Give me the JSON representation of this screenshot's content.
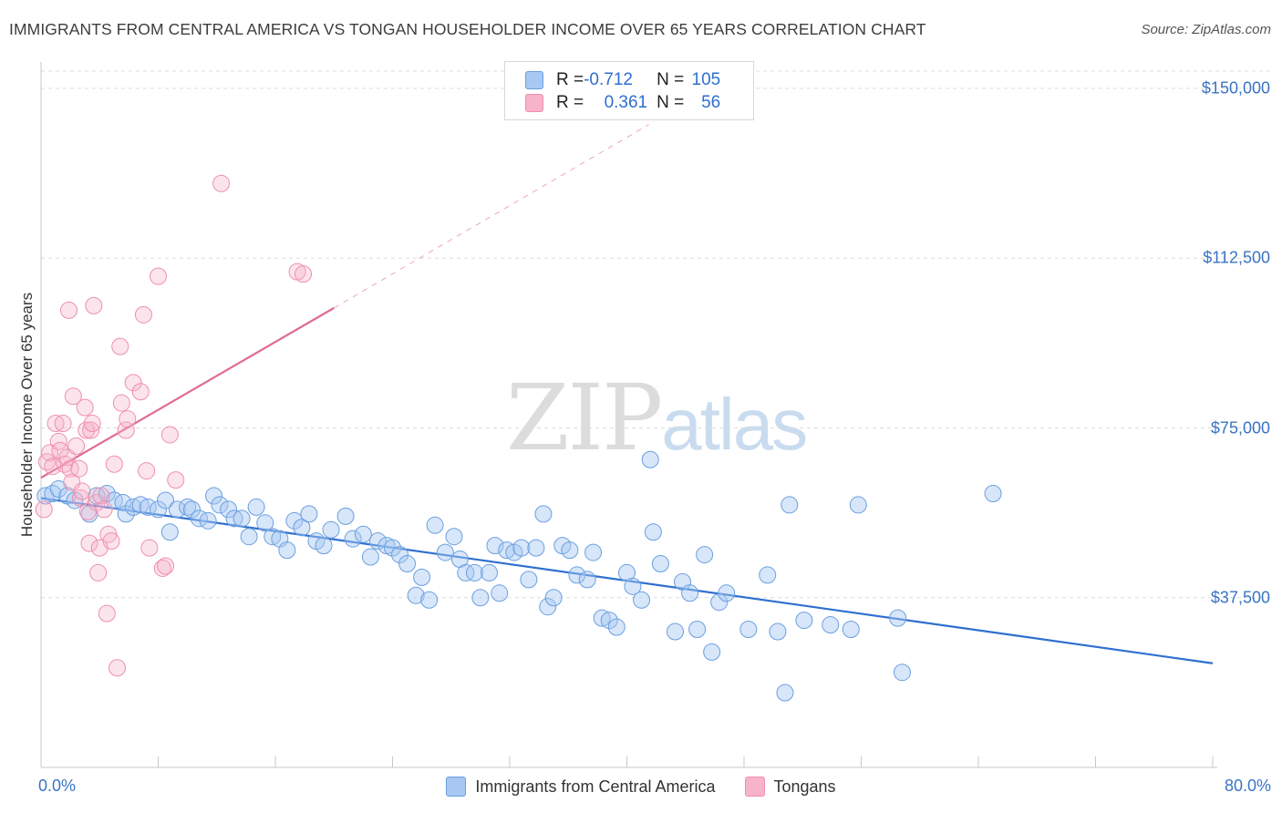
{
  "title": "IMMIGRANTS FROM CENTRAL AMERICA VS TONGAN HOUSEHOLDER INCOME OVER 65 YEARS CORRELATION CHART",
  "source": "Source: ZipAtlas.com",
  "watermark": {
    "zip": "ZIP",
    "atlas": "atlas"
  },
  "legend": {
    "rows": [
      {
        "r_label": "R = ",
        "r_value": "-0.712",
        "n_label": "N = ",
        "n_value": "105",
        "color": "#a7c8f2"
      },
      {
        "r_label": "R = ",
        "r_value": "0.361",
        "n_label": "N = ",
        "n_value": "56",
        "color": "#f6b3c9"
      }
    ]
  },
  "bottom_legend": [
    {
      "label": "Immigrants from Central America",
      "color": "#a7c8f2"
    },
    {
      "label": "Tongans",
      "color": "#f6b3c9"
    }
  ],
  "chart_data": {
    "type": "scatter",
    "title": "IMMIGRANTS FROM CENTRAL AMERICA VS TONGAN HOUSEHOLDER INCOME OVER 65 YEARS CORRELATION CHART",
    "xlabel": "",
    "ylabel": "Householder Income Over 65 years",
    "xlim": [
      0,
      80
    ],
    "ylim": [
      0,
      153000
    ],
    "x_tick_labels": [
      {
        "value": 0,
        "label": "0.0%"
      },
      {
        "value": 80,
        "label": "80.0%"
      }
    ],
    "y_tick_labels": [
      {
        "value": 37500,
        "label": "$37,500"
      },
      {
        "value": 75000,
        "label": "$75,000"
      },
      {
        "value": 112500,
        "label": "$112,500"
      },
      {
        "value": 150000,
        "label": "$150,000"
      }
    ],
    "grid": true,
    "series": [
      {
        "name": "Immigrants from Central America",
        "color": "#7aa9e6",
        "points": [
          [
            0.3,
            60000
          ],
          [
            0.8,
            60500
          ],
          [
            1.2,
            61500
          ],
          [
            1.8,
            60000
          ],
          [
            2.3,
            59000
          ],
          [
            3.3,
            56000
          ],
          [
            3.8,
            60000
          ],
          [
            4.5,
            60500
          ],
          [
            5.0,
            59000
          ],
          [
            5.6,
            58500
          ],
          [
            5.8,
            56000
          ],
          [
            6.3,
            57500
          ],
          [
            6.8,
            58000
          ],
          [
            7.3,
            57500
          ],
          [
            8.0,
            57000
          ],
          [
            8.5,
            59000
          ],
          [
            8.8,
            52000
          ],
          [
            9.3,
            57000
          ],
          [
            10.0,
            57500
          ],
          [
            10.3,
            57000
          ],
          [
            10.8,
            55000
          ],
          [
            11.4,
            54500
          ],
          [
            11.8,
            60000
          ],
          [
            12.2,
            58000
          ],
          [
            12.8,
            57000
          ],
          [
            13.2,
            55000
          ],
          [
            13.7,
            55000
          ],
          [
            14.2,
            51000
          ],
          [
            14.7,
            57500
          ],
          [
            15.3,
            54000
          ],
          [
            15.8,
            51000
          ],
          [
            16.3,
            50500
          ],
          [
            16.8,
            48000
          ],
          [
            17.3,
            54500
          ],
          [
            17.8,
            53000
          ],
          [
            18.3,
            56000
          ],
          [
            18.8,
            50000
          ],
          [
            19.3,
            49000
          ],
          [
            19.8,
            52500
          ],
          [
            20.8,
            55500
          ],
          [
            21.3,
            50500
          ],
          [
            22.0,
            51500
          ],
          [
            22.5,
            46500
          ],
          [
            23.0,
            50000
          ],
          [
            23.6,
            49000
          ],
          [
            24.0,
            48500
          ],
          [
            24.5,
            47000
          ],
          [
            25.0,
            45000
          ],
          [
            25.6,
            38000
          ],
          [
            26.0,
            42000
          ],
          [
            26.5,
            37000
          ],
          [
            26.9,
            53500
          ],
          [
            27.6,
            47500
          ],
          [
            28.2,
            51000
          ],
          [
            28.6,
            46000
          ],
          [
            29.0,
            43000
          ],
          [
            29.6,
            43000
          ],
          [
            30.0,
            37500
          ],
          [
            30.6,
            43000
          ],
          [
            31.0,
            49000
          ],
          [
            31.3,
            38500
          ],
          [
            31.8,
            48000
          ],
          [
            32.3,
            47500
          ],
          [
            32.8,
            48500
          ],
          [
            33.3,
            41500
          ],
          [
            33.8,
            48500
          ],
          [
            34.3,
            56000
          ],
          [
            34.6,
            35500
          ],
          [
            35.0,
            37500
          ],
          [
            35.6,
            49000
          ],
          [
            36.1,
            48000
          ],
          [
            36.6,
            42500
          ],
          [
            37.3,
            41500
          ],
          [
            37.7,
            47500
          ],
          [
            38.3,
            33000
          ],
          [
            38.8,
            32500
          ],
          [
            39.3,
            31000
          ],
          [
            40.0,
            43000
          ],
          [
            40.4,
            40000
          ],
          [
            41.0,
            37000
          ],
          [
            41.6,
            68000
          ],
          [
            41.8,
            52000
          ],
          [
            42.3,
            45000
          ],
          [
            43.3,
            30000
          ],
          [
            43.8,
            41000
          ],
          [
            44.3,
            38500
          ],
          [
            44.8,
            30500
          ],
          [
            45.3,
            47000
          ],
          [
            45.8,
            25500
          ],
          [
            46.3,
            36500
          ],
          [
            46.8,
            38500
          ],
          [
            48.3,
            30500
          ],
          [
            49.6,
            42500
          ],
          [
            50.3,
            30000
          ],
          [
            50.8,
            16500
          ],
          [
            51.1,
            58000
          ],
          [
            52.1,
            32500
          ],
          [
            53.9,
            31500
          ],
          [
            55.3,
            30500
          ],
          [
            55.8,
            58000
          ],
          [
            58.5,
            33000
          ],
          [
            58.8,
            21000
          ],
          [
            65.0,
            60500
          ]
        ]
      },
      {
        "name": "Tongans",
        "color": "#f096b2",
        "points": [
          [
            0.2,
            57000
          ],
          [
            0.4,
            67500
          ],
          [
            0.6,
            69500
          ],
          [
            0.8,
            66500
          ],
          [
            1.0,
            76000
          ],
          [
            1.2,
            72000
          ],
          [
            1.3,
            70000
          ],
          [
            1.5,
            76000
          ],
          [
            1.6,
            67000
          ],
          [
            1.8,
            68500
          ],
          [
            1.9,
            101000
          ],
          [
            2.0,
            66000
          ],
          [
            2.1,
            63000
          ],
          [
            2.2,
            82000
          ],
          [
            2.4,
            71000
          ],
          [
            2.6,
            66000
          ],
          [
            2.7,
            59500
          ],
          [
            2.8,
            61000
          ],
          [
            3.0,
            79500
          ],
          [
            3.1,
            74500
          ],
          [
            3.2,
            56500
          ],
          [
            3.3,
            49500
          ],
          [
            3.4,
            74500
          ],
          [
            3.5,
            76000
          ],
          [
            3.6,
            102000
          ],
          [
            3.8,
            58500
          ],
          [
            3.9,
            43000
          ],
          [
            4.0,
            48500
          ],
          [
            4.1,
            60000
          ],
          [
            4.3,
            57000
          ],
          [
            4.5,
            34000
          ],
          [
            4.6,
            51500
          ],
          [
            4.8,
            50000
          ],
          [
            5.0,
            67000
          ],
          [
            5.2,
            22000
          ],
          [
            5.4,
            93000
          ],
          [
            5.5,
            80500
          ],
          [
            5.8,
            74500
          ],
          [
            5.9,
            77000
          ],
          [
            6.3,
            85000
          ],
          [
            6.8,
            83000
          ],
          [
            7.0,
            100000
          ],
          [
            7.2,
            65500
          ],
          [
            7.4,
            48500
          ],
          [
            8.0,
            108500
          ],
          [
            8.3,
            44000
          ],
          [
            8.5,
            44500
          ],
          [
            8.8,
            73500
          ],
          [
            9.2,
            63500
          ],
          [
            12.3,
            129000
          ],
          [
            17.5,
            109500
          ],
          [
            17.9,
            109000
          ]
        ]
      }
    ],
    "trend_lines": [
      {
        "series": "Immigrants from Central America",
        "x": [
          0,
          80
        ],
        "y": [
          59500,
          23000
        ]
      },
      {
        "series": "Tongans",
        "x": [
          0,
          20
        ],
        "y": [
          64000,
          101500
        ]
      },
      {
        "series": "Tongans",
        "style": "dashed",
        "x": [
          20,
          41.5
        ],
        "y": [
          101500,
          142000
        ]
      }
    ]
  }
}
